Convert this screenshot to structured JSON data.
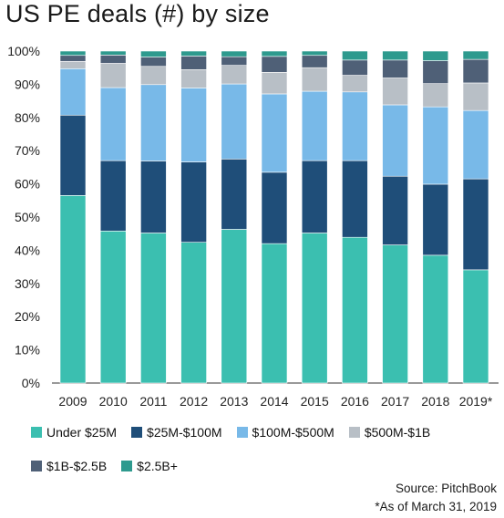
{
  "chart_data": {
    "type": "bar",
    "stacked": true,
    "title": "US PE deals (#) by size",
    "categories": [
      "2009",
      "2010",
      "2011",
      "2012",
      "2013",
      "2014",
      "2015",
      "2016",
      "2017",
      "2018",
      "2019*"
    ],
    "ylim": [
      0,
      100
    ],
    "yticks": [
      "0%",
      "10%",
      "20%",
      "30%",
      "40%",
      "50%",
      "60%",
      "70%",
      "80%",
      "90%",
      "100%"
    ],
    "grid": false,
    "legend_position": "bottom",
    "series": [
      {
        "name": "Under $25M",
        "color": "#3bbfb0",
        "values": [
          56.5,
          45.8,
          45.2,
          42.4,
          46.3,
          42.0,
          45.2,
          43.9,
          41.6,
          38.5,
          34.1
        ]
      },
      {
        "name": "$25M-$100M",
        "color": "#1f4e79",
        "values": [
          24.2,
          21.2,
          21.7,
          24.2,
          21.2,
          21.5,
          21.8,
          23.1,
          20.7,
          21.4,
          27.4
        ]
      },
      {
        "name": "$100M-$500M",
        "color": "#78b9e8",
        "values": [
          14.0,
          22.0,
          23.0,
          22.3,
          22.6,
          23.6,
          20.9,
          20.7,
          21.5,
          23.3,
          20.6
        ]
      },
      {
        "name": "$500M-$1B",
        "color": "#b8bfc6",
        "values": [
          2.2,
          7.3,
          5.5,
          5.5,
          5.6,
          6.5,
          7.1,
          5.0,
          8.1,
          7.0,
          8.3
        ]
      },
      {
        "name": "$1B-$2.5B",
        "color": "#4f6077",
        "values": [
          1.8,
          2.5,
          2.8,
          4.1,
          2.6,
          4.8,
          3.7,
          4.6,
          5.4,
          6.9,
          7.1
        ]
      },
      {
        "name": "$2.5B+",
        "color": "#2e9a8e",
        "values": [
          1.3,
          1.2,
          1.8,
          1.5,
          1.7,
          1.6,
          1.3,
          2.7,
          2.7,
          2.9,
          2.5
        ]
      }
    ]
  },
  "source_line": "Source: PitchBook",
  "note_line": "*As of March 31, 2019"
}
